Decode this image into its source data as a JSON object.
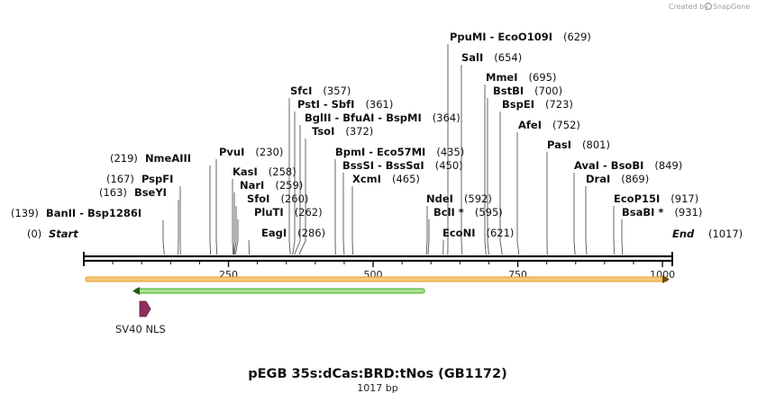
{
  "credit": {
    "prefix": "Created by",
    "brand": "SnapGene"
  },
  "plasmid": {
    "name": "pEGB 35s:dCas:BRD:tNos (GB1172)",
    "size_label": "1017 bp",
    "length": 1017
  },
  "ends": {
    "start_label": "Start",
    "start_pos": "(0)",
    "end_label": "End",
    "end_pos": "(1017)"
  },
  "ticks": [
    {
      "value": 250,
      "label": "250"
    },
    {
      "value": 500,
      "label": "500"
    },
    {
      "value": 750,
      "label": "750"
    },
    {
      "value": 1000,
      "label": "1000"
    }
  ],
  "sites": [
    {
      "names": "BanII  -  Bsp1286I",
      "pos": "(139)",
      "bp": 139,
      "side": "left"
    },
    {
      "names": "BseYI",
      "pos": "(163)",
      "bp": 163,
      "side": "left"
    },
    {
      "names": "PspFI",
      "pos": "(167)",
      "bp": 167,
      "side": "left"
    },
    {
      "names": "NmeAIII",
      "pos": "(219)",
      "bp": 219,
      "side": "left"
    },
    {
      "names": "PvuI",
      "pos": "(230)",
      "bp": 230,
      "side": "right"
    },
    {
      "names": "KasI",
      "pos": "(258)",
      "bp": 258,
      "side": "right"
    },
    {
      "names": "NarI",
      "pos": "(259)",
      "bp": 259,
      "side": "right"
    },
    {
      "names": "SfoI",
      "pos": "(260)",
      "bp": 260,
      "side": "right"
    },
    {
      "names": "PluTI",
      "pos": "(262)",
      "bp": 262,
      "side": "right"
    },
    {
      "names": "EagI",
      "pos": "(286)",
      "bp": 286,
      "side": "right"
    },
    {
      "names": "SfcI",
      "pos": "(357)",
      "bp": 357,
      "side": "right"
    },
    {
      "names": "PstI  -  SbfI",
      "pos": "(361)",
      "bp": 361,
      "side": "right"
    },
    {
      "names": "BglII  -  BfuAI  -  BspMI",
      "pos": "(364)",
      "bp": 364,
      "side": "right"
    },
    {
      "names": "TsoI",
      "pos": "(372)",
      "bp": 372,
      "side": "right"
    },
    {
      "names": "BpmI  -  Eco57MI",
      "pos": "(435)",
      "bp": 435,
      "side": "right"
    },
    {
      "names": "BssSI  -  BssSαI",
      "pos": "(450)",
      "bp": 450,
      "side": "right"
    },
    {
      "names": "XcmI",
      "pos": "(465)",
      "bp": 465,
      "side": "right"
    },
    {
      "names": "NdeI",
      "pos": "(592)",
      "bp": 592,
      "side": "right"
    },
    {
      "names": "BclI *",
      "pos": "(595)",
      "bp": 595,
      "side": "right"
    },
    {
      "names": "EcoNI",
      "pos": "(621)",
      "bp": 621,
      "side": "right"
    },
    {
      "names": "PpuMI  -  EcoO109I",
      "pos": "(629)",
      "bp": 629,
      "side": "right"
    },
    {
      "names": "SalI",
      "pos": "(654)",
      "bp": 654,
      "side": "right"
    },
    {
      "names": "MmeI",
      "pos": "(695)",
      "bp": 695,
      "side": "right"
    },
    {
      "names": "BstBI",
      "pos": "(700)",
      "bp": 700,
      "side": "right"
    },
    {
      "names": "BspEI",
      "pos": "(723)",
      "bp": 723,
      "side": "right"
    },
    {
      "names": "AfeI",
      "pos": "(752)",
      "bp": 752,
      "side": "right"
    },
    {
      "names": "PasI",
      "pos": "(801)",
      "bp": 801,
      "side": "right"
    },
    {
      "names": "AvaI  -  BsoBI",
      "pos": "(849)",
      "bp": 849,
      "side": "right"
    },
    {
      "names": "DraI",
      "pos": "(869)",
      "bp": 869,
      "side": "right"
    },
    {
      "names": "EcoP15I",
      "pos": "(917)",
      "bp": 917,
      "side": "right"
    },
    {
      "names": "BsaBI *",
      "pos": "(931)",
      "bp": 931,
      "side": "right"
    }
  ],
  "features": [
    {
      "name": "SV40 NLS",
      "color": "#8e2f5e"
    }
  ],
  "colors": {
    "backbone": "#111111",
    "orange_arrow": "#f0a030",
    "green_arrow": "#3fae2a",
    "site_line": "#555555"
  }
}
